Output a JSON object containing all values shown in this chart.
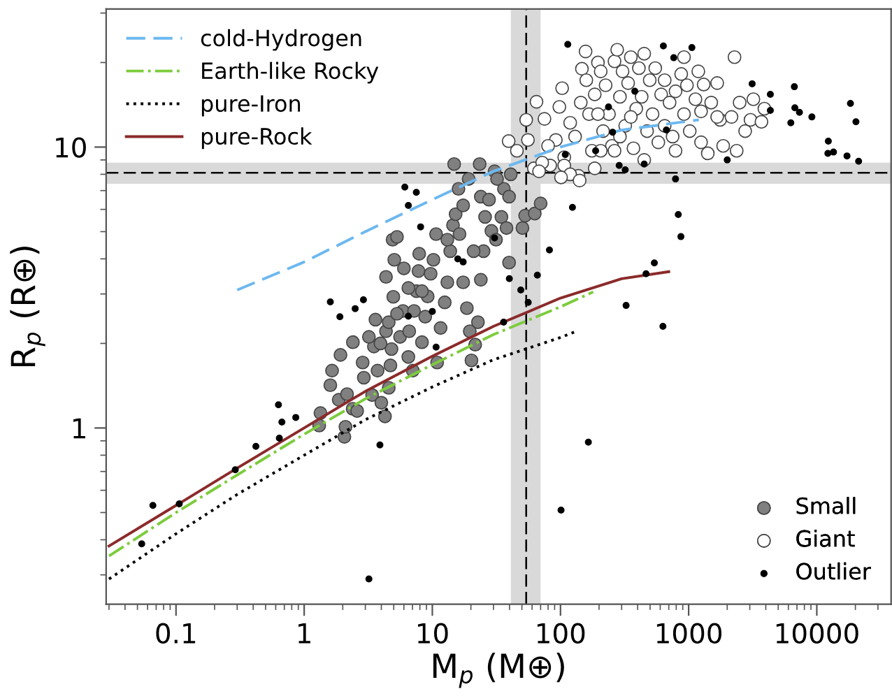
{
  "chart_data": {
    "type": "scatter",
    "xlabel": "M$_{p}$ (M⊕)",
    "ylabel": "R$_{p}$ (R⊕)",
    "log": "xy",
    "xlim": [
      0.0285,
      38000
    ],
    "ylim": [
      0.236,
      31
    ],
    "xticks": [
      0.1,
      1,
      10,
      100,
      1000,
      10000
    ],
    "yticks": [
      1,
      10
    ],
    "grid": false,
    "legend": "top left",
    "ref_lines": [
      {
        "axis": "x",
        "value": 54,
        "color": "#000000",
        "line_style": "dashed"
      },
      {
        "axis": "y",
        "value": 8.1,
        "color": "#000000",
        "line_style": "dashed"
      }
    ],
    "bands": [
      {
        "axis": "x",
        "from": 41,
        "to": 70,
        "color": "#d9d9d9"
      },
      {
        "axis": "y",
        "from": 7.4,
        "to": 8.8,
        "color": "#d9d9d9"
      }
    ],
    "series": [
      {
        "name": "cold-Hydrogen",
        "type": "line",
        "color": "#6cb8f0",
        "line_style": "dashed",
        "marker": "none",
        "x": [
          0.3,
          1,
          3,
          10,
          30,
          100,
          300,
          1200
        ],
        "values": [
          3.1,
          3.9,
          5.0,
          6.5,
          8.2,
          10,
          11.5,
          12.5
        ]
      },
      {
        "name": "Earth-like Rocky",
        "type": "line",
        "color": "#7ccc3c",
        "line_style": "dashdot",
        "marker": "none",
        "x": [
          0.03,
          0.1,
          0.3,
          1,
          3,
          10,
          30,
          100,
          180
        ],
        "values": [
          0.35,
          0.5,
          0.68,
          0.95,
          1.27,
          1.68,
          2.15,
          2.7,
          3.05
        ]
      },
      {
        "name": "pure-Iron",
        "type": "line",
        "color": "#000000",
        "line_style": "dotted",
        "marker": "none",
        "x": [
          0.03,
          0.1,
          0.3,
          1,
          3,
          10,
          30,
          100,
          130
        ],
        "values": [
          0.29,
          0.42,
          0.58,
          0.8,
          1.07,
          1.4,
          1.75,
          2.1,
          2.2
        ]
      },
      {
        "name": "pure-Rock",
        "type": "line",
        "color": "#8b2a2a",
        "line_style": "solid",
        "marker": "none",
        "x": [
          0.03,
          0.1,
          0.3,
          1,
          3,
          10,
          30,
          100,
          300,
          700
        ],
        "values": [
          0.38,
          0.53,
          0.72,
          1.0,
          1.35,
          1.8,
          2.3,
          2.9,
          3.4,
          3.6
        ]
      },
      {
        "name": "Small",
        "color": "#808080",
        "marker": "circle",
        "x": [
          1.31,
          1.34,
          1.6,
          1.65,
          1.92,
          2.06,
          2.1,
          1.86,
          2.16,
          2.39,
          2.59,
          2.92,
          2.86,
          3.39,
          3.5,
          3.74,
          4.27,
          4.0,
          4.57,
          4.71,
          4.8,
          4.35,
          4.57,
          4.96,
          4.35,
          5.05,
          4.9,
          5.3,
          5.6,
          5.9,
          6.0,
          6.5,
          7.04,
          6.6,
          7.2,
          7.5,
          7.8,
          7.9,
          8.3,
          8.8,
          9.2,
          9.7,
          10.2,
          10.7,
          10.9,
          11.6,
          12.5,
          13.1,
          13.8,
          14.5,
          15.2,
          16.3,
          17.4,
          18.6,
          19.6,
          20.2,
          21.6,
          22.7,
          23.9,
          25.1,
          25.8,
          23.9,
          27.7,
          28.9,
          31.4,
          34.6,
          36.2,
          39.7,
          40.9,
          37.9,
          39.7,
          50.5,
          53,
          63,
          70,
          14.8,
          23.4,
          19.2,
          16,
          30.6,
          32,
          5.3,
          3.94,
          3.6,
          3.2,
          2.4,
          21,
          17.4,
          13.1,
          8.3,
          6.5
        ],
        "values": [
          1.02,
          1.13,
          1.42,
          1.6,
          1.82,
          0.93,
          1.01,
          1.26,
          1.32,
          1.17,
          1.15,
          1.51,
          1.71,
          1.31,
          1.95,
          1.6,
          1.1,
          1.23,
          1.39,
          1.67,
          1.91,
          2.21,
          2.38,
          2.93,
          3.45,
          3.97,
          4.68,
          4.79,
          2.11,
          2.61,
          3.7,
          1.79,
          1.6,
          2.21,
          2.61,
          3.07,
          3.62,
          4.17,
          2.02,
          2.49,
          2.94,
          3.54,
          3.97,
          4.9,
          1.71,
          2.27,
          2.8,
          3.3,
          4.26,
          5.27,
          5.77,
          4.9,
          3.3,
          2.67,
          2.21,
          1.74,
          1.98,
          2.38,
          3.37,
          4.26,
          5.64,
          6.66,
          6.5,
          5.03,
          4.68,
          5.64,
          7.1,
          6.66,
          8.0,
          5.15,
          3.88,
          5.15,
          5.7,
          5.8,
          6.3,
          8.7,
          8.7,
          7.7,
          7.1,
          8.2,
          7.7,
          2.55,
          2.0,
          2.43,
          2.11,
          2.02,
          4.26,
          6.2,
          4.68,
          3.07,
          3.15
        ]
      },
      {
        "name": "Giant",
        "color": "#ffffff",
        "marker": "circle",
        "x": [
          39.4,
          45.7,
          55.7,
          65,
          54,
          62,
          75,
          83,
          92,
          98,
          103,
          107,
          119,
          130,
          138,
          144,
          147,
          159,
          157,
          167,
          176,
          185,
          196,
          215,
          206,
          225,
          239,
          252,
          264,
          277,
          291,
          305,
          320,
          337,
          354,
          371,
          390,
          409,
          430,
          450,
          474,
          497,
          523,
          549,
          580,
          610,
          650,
          710,
          750,
          790,
          875,
          920,
          970,
          1020,
          1130,
          1190,
          1250,
          1310,
          1410,
          1500,
          1670,
          1760,
          1860,
          2280,
          2160,
          2370,
          2500,
          2760,
          3040,
          3200,
          3700,
          3900,
          1670,
          107,
          119,
          72,
          80,
          185,
          206,
          264,
          450,
          790,
          291,
          196,
          354,
          650,
          141,
          101,
          68,
          920,
          1250
        ],
        "values": [
          10.5,
          9.7,
          10.6,
          14.5,
          12.5,
          8.4,
          12.6,
          8.6,
          10.6,
          13.9,
          16.2,
          9.2,
          12.2,
          10.9,
          7.9,
          14.4,
          19.0,
          17.3,
          21.9,
          13.1,
          9.7,
          15.4,
          20.0,
          11.4,
          18.6,
          16.6,
          13.1,
          10.1,
          20.2,
          22.2,
          15.1,
          18.6,
          11.9,
          16.9,
          20.9,
          9.9,
          13.7,
          19.1,
          15.1,
          21.5,
          11.4,
          17.3,
          13.1,
          19.1,
          10.4,
          15.4,
          17.3,
          14.4,
          10.9,
          15.8,
          18.2,
          13.1,
          16.6,
          11.4,
          14.8,
          18.6,
          10.4,
          16.7,
          9.5,
          14.4,
          16.9,
          12.5,
          10.1,
          20.9,
          12.8,
          9.7,
          14.4,
          11.4,
          12.5,
          14.8,
          12.3,
          13.7,
          12.8,
          8.6,
          8.0,
          8.8,
          10.1,
          8.4,
          9.7,
          9.7,
          9.0,
          9.7,
          10.9,
          13.1,
          12.8,
          11.9,
          7.6,
          7.8,
          8.2,
          20.9,
          13.4
        ]
      },
      {
        "name": "Outlier",
        "color": "#000000",
        "marker": "circle",
        "x": [
          0.066,
          0.054,
          0.106,
          0.42,
          0.63,
          0.67,
          0.86,
          0.64,
          0.29,
          1.6,
          1.9,
          2.5,
          2.9,
          3.2,
          3.9,
          6.1,
          7.5,
          6.5,
          8.1,
          6.5,
          10.7,
          10,
          15.8,
          17.4,
          30.6,
          39.9,
          36,
          49,
          56,
          66,
          82,
          101,
          124,
          109,
          165,
          114,
          237,
          255,
          287,
          320,
          188,
          380,
          450,
          325,
          465,
          540,
          635,
          765,
          1060,
          630,
          790,
          830,
          870,
          670,
          2000,
          3130,
          4340,
          4340,
          6270,
          6680,
          6740,
          7320,
          9150,
          12300,
          12200,
          13500,
          17200,
          18300,
          20200,
          21200
        ],
        "values": [
          0.53,
          0.387,
          0.537,
          0.86,
          1.21,
          1.05,
          1.09,
          0.92,
          0.71,
          2.81,
          2.49,
          2.66,
          2.86,
          0.29,
          0.87,
          7.2,
          6.9,
          6.2,
          5.2,
          2.5,
          1.94,
          2.6,
          4.0,
          3.9,
          4.75,
          3.4,
          2.38,
          3.1,
          2.8,
          3.5,
          4.3,
          0.51,
          6.1,
          9.4,
          0.89,
          23.2,
          13.9,
          11.3,
          8.6,
          8.3,
          9.7,
          15.8,
          8.7,
          2.73,
          3.54,
          3.87,
          22.9,
          20.8,
          22.6,
          2.3,
          7.7,
          5.75,
          4.8,
          11.5,
          9.0,
          16.8,
          15.4,
          13.5,
          12.2,
          16.4,
          13.8,
          13.3,
          12.8,
          10.5,
          9.5,
          9.6,
          9.3,
          14.3,
          12.3,
          8.9
        ]
      }
    ]
  }
}
